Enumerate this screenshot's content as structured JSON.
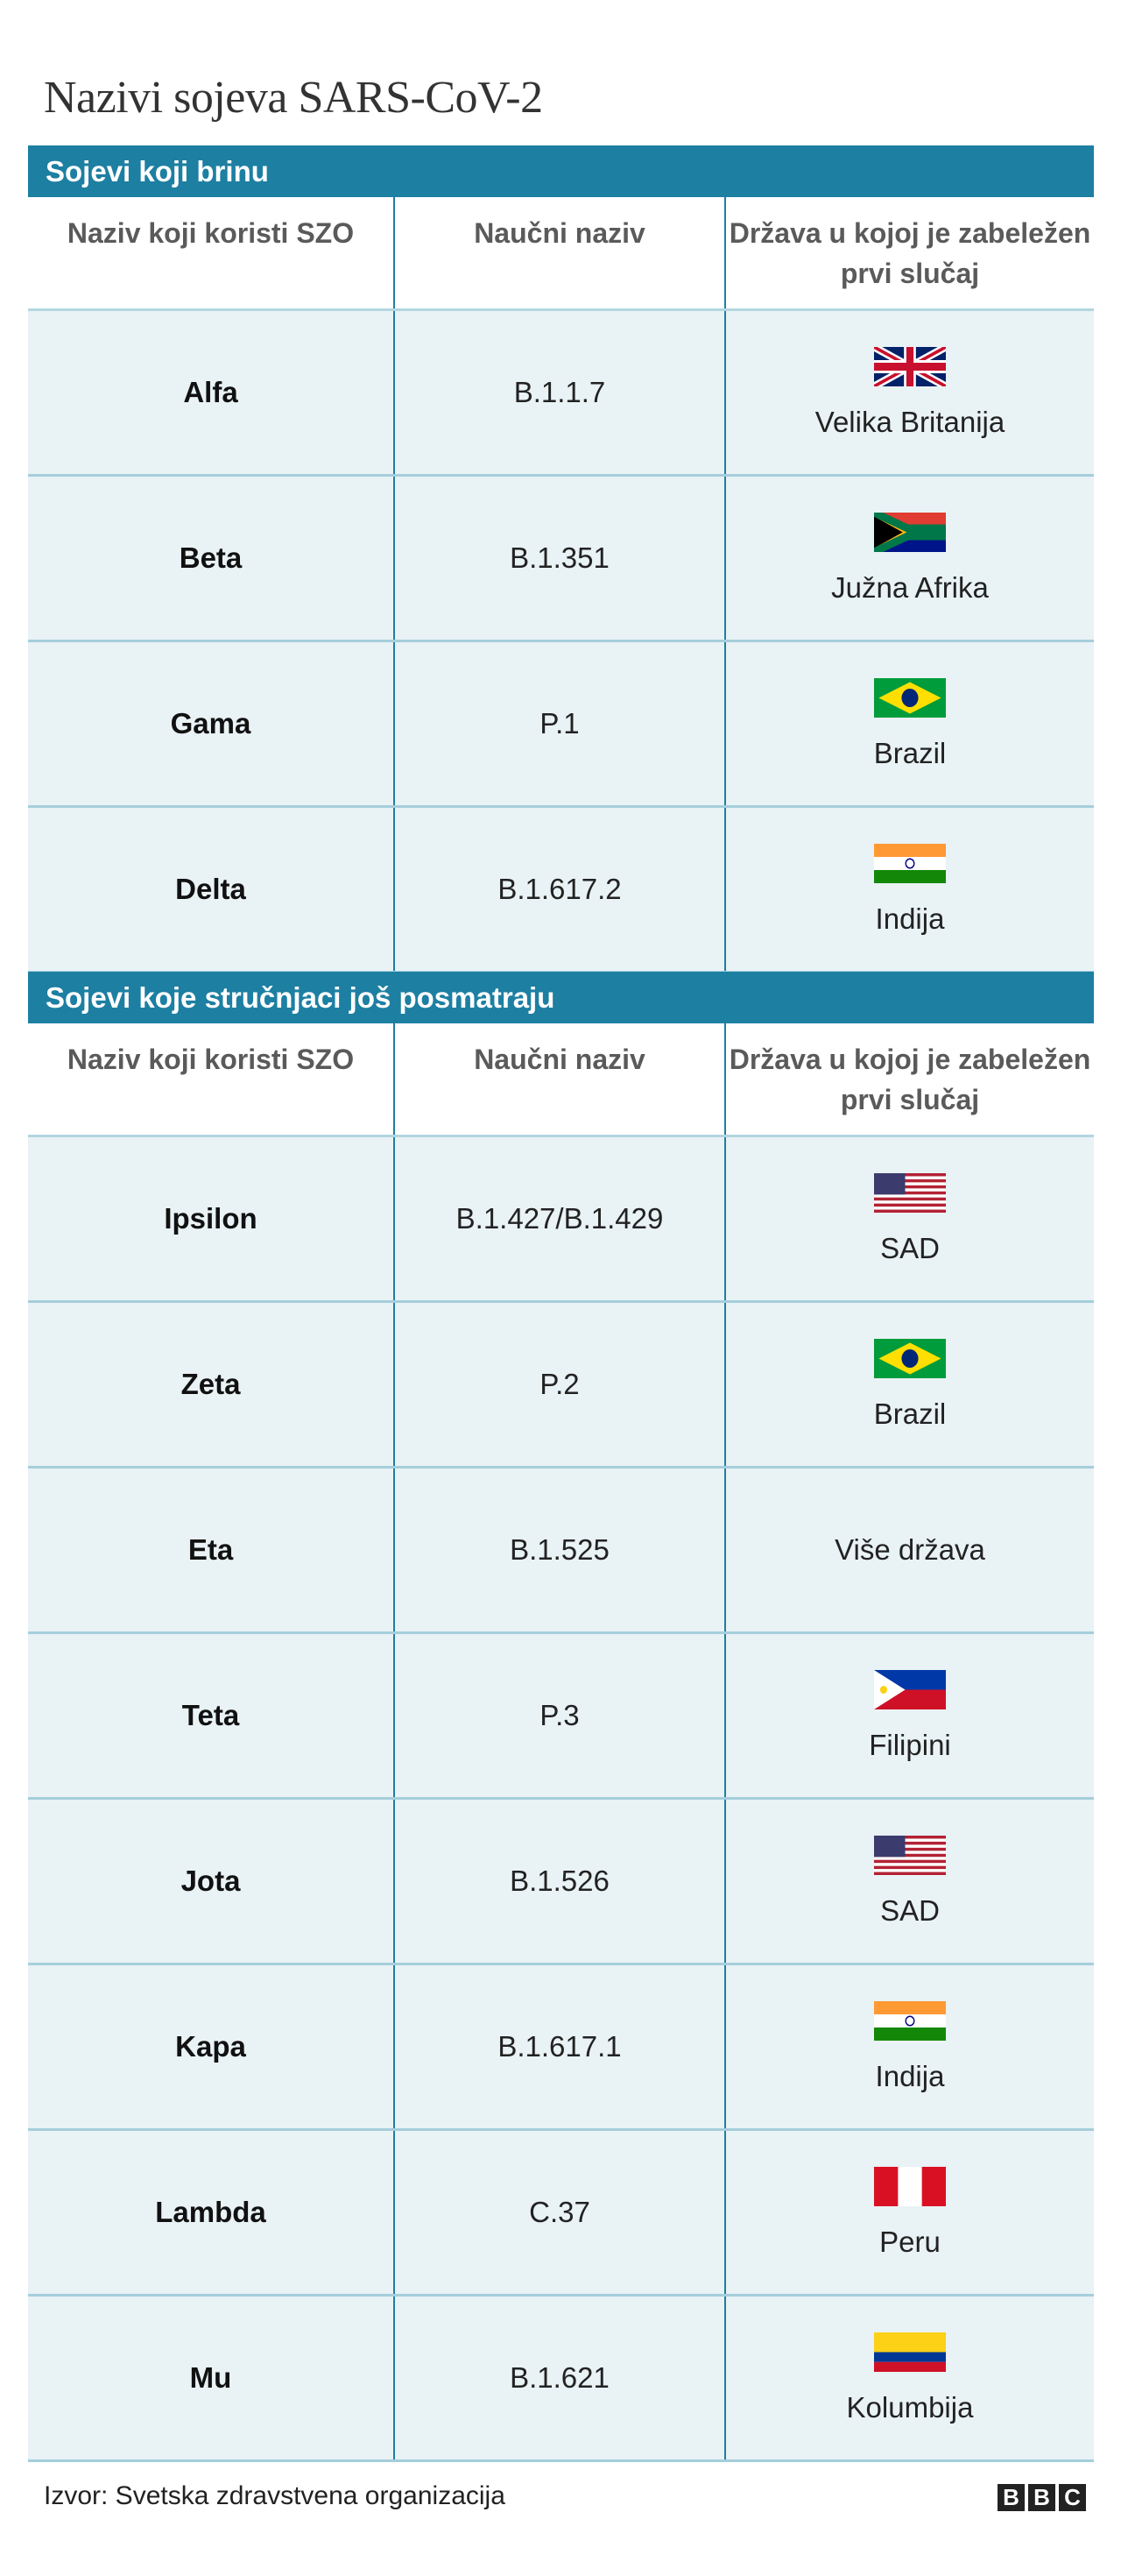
{
  "title": "Nazivi sojeva SARS-CoV-2",
  "headers": [
    "Naziv koji koristi SZO",
    "Naučni naziv",
    "Država u kojoj je zabeležen prvi slučaj"
  ],
  "sections": [
    {
      "label": "Sojevi koji brinu",
      "rows": [
        {
          "name": "Alfa",
          "code": "B.1.1.7",
          "country": "Velika Britanija",
          "flag": "gb-flag"
        },
        {
          "name": "Beta",
          "code": "B.1.351",
          "country": "Južna Afrika",
          "flag": "za-flag"
        },
        {
          "name": "Gama",
          "code": "P.1",
          "country": "Brazil",
          "flag": "br-flag"
        },
        {
          "name": "Delta",
          "code": "B.1.617.2",
          "country": "Indija",
          "flag": "in-flag"
        }
      ]
    },
    {
      "label": "Sojevi koje stručnjaci još posmatraju",
      "rows": [
        {
          "name": "Ipsilon",
          "code": "B.1.427/B.1.429",
          "country": "SAD",
          "flag": "us-flag"
        },
        {
          "name": "Zeta",
          "code": "P.2",
          "country": "Brazil",
          "flag": "br-flag"
        },
        {
          "name": "Eta",
          "code": "B.1.525",
          "country": "Više država",
          "flag": ""
        },
        {
          "name": "Teta",
          "code": "P.3",
          "country": "Filipini",
          "flag": "ph-flag"
        },
        {
          "name": "Jota",
          "code": "B.1.526",
          "country": "SAD",
          "flag": "us-flag"
        },
        {
          "name": "Kapa",
          "code": "B.1.617.1",
          "country": "Indija",
          "flag": "in-flag"
        },
        {
          "name": "Lambda",
          "code": "C.37",
          "country": "Peru",
          "flag": "pe-flag"
        },
        {
          "name": "Mu",
          "code": "B.1.621",
          "country": "Kolumbija",
          "flag": "co-flag"
        }
      ]
    }
  ],
  "footer": {
    "source": "Izvor: Svetska zdravstvena organizacija",
    "logo": [
      "B",
      "B",
      "C"
    ]
  },
  "colors": {
    "accent": "#1d7fa2",
    "row_bg": "#e9f2f5",
    "row_border": "#a5cedb"
  }
}
